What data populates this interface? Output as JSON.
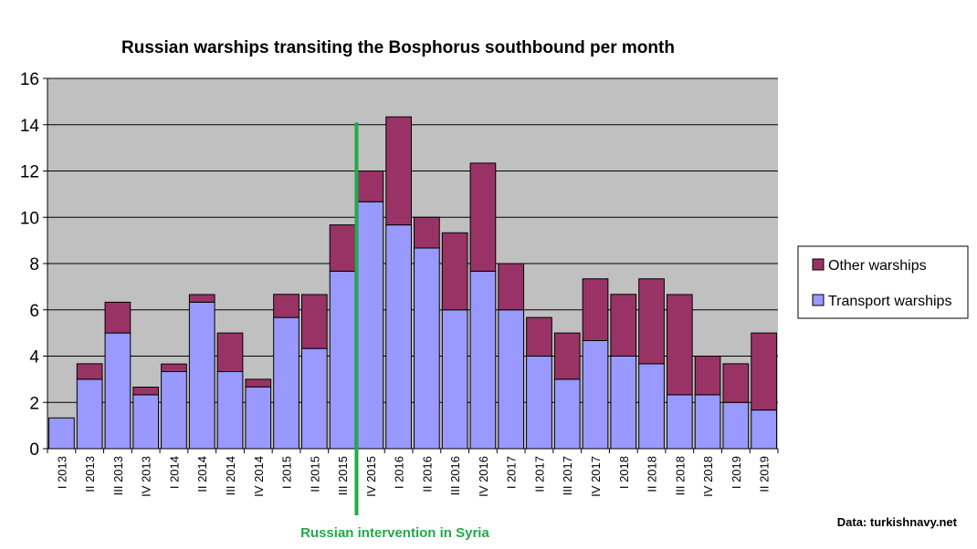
{
  "chart_data": {
    "type": "bar",
    "stacked": true,
    "title": "Russian warships transiting the Bosphorus southbound per month",
    "categories": [
      "I 2013",
      "II 2013",
      "III 2013",
      "IV 2013",
      "I 2014",
      "II 2014",
      "III 2014",
      "IV 2014",
      "I 2015",
      "II 2015",
      "III 2015",
      "IV 2015",
      "I 2016",
      "II 2016",
      "III 2016",
      "IV 2016",
      "I 2017",
      "II 2017",
      "III 2017",
      "IV 2017",
      "I 2018",
      "II 2018",
      "III 2018",
      "IV 2018",
      "I 2019",
      "II 2019"
    ],
    "series": [
      {
        "name": "Transport warships",
        "color": "#9999ff",
        "values": [
          1.33,
          3.0,
          5.0,
          2.33,
          3.33,
          6.33,
          3.33,
          2.67,
          5.67,
          4.33,
          7.67,
          10.67,
          9.67,
          8.67,
          6.0,
          7.67,
          6.0,
          4.0,
          3.0,
          4.67,
          4.0,
          3.67,
          2.33,
          2.33,
          2.0,
          1.67
        ]
      },
      {
        "name": "Other warships",
        "color": "#993366",
        "values": [
          0,
          0.67,
          1.33,
          0.33,
          0.33,
          0.33,
          1.67,
          0.33,
          1.0,
          2.33,
          2.0,
          1.33,
          4.67,
          1.33,
          3.33,
          4.67,
          2.0,
          1.67,
          2.0,
          2.67,
          2.67,
          3.67,
          4.33,
          1.67,
          1.67,
          3.33
        ]
      }
    ],
    "ylim": [
      0,
      16
    ],
    "yticks": [
      "0",
      "2",
      "4",
      "6",
      "8",
      "10",
      "12",
      "14",
      "16"
    ],
    "grid": true,
    "plot_background": "#c0c0c0",
    "legend_position": "right",
    "annotation": {
      "text": "Russian intervention in Syria",
      "between": [
        "III 2015",
        "IV 2015"
      ],
      "color": "#22aa4a"
    },
    "source": "Data: turkishnavy.net"
  }
}
